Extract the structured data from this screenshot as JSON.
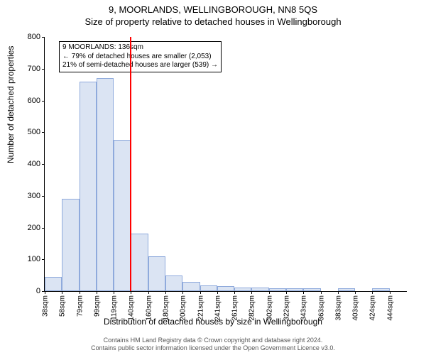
{
  "title_main": "9, MOORLANDS, WELLINGBOROUGH, NN8 5QS",
  "title_sub": "Size of property relative to detached houses in Wellingborough",
  "ylabel": "Number of detached properties",
  "xlabel": "Distribution of detached houses by size in Wellingborough",
  "footer_line1": "Contains HM Land Registry data © Crown copyright and database right 2024.",
  "footer_line2": "Contains public sector information licensed under the Open Government Licence v3.0.",
  "annotation": {
    "line1": "9 MOORLANDS: 136sqm",
    "line2": "← 79% of detached houses are smaller (2,053)",
    "line3": "21% of semi-detached houses are larger (539) →"
  },
  "chart": {
    "type": "histogram",
    "ylim": [
      0,
      800
    ],
    "ytick_step": 100,
    "xticks": [
      "38sqm",
      "58sqm",
      "79sqm",
      "99sqm",
      "119sqm",
      "140sqm",
      "160sqm",
      "180sqm",
      "200sqm",
      "221sqm",
      "241sqm",
      "261sqm",
      "282sqm",
      "302sqm",
      "322sqm",
      "343sqm",
      "363sqm",
      "383sqm",
      "403sqm",
      "424sqm",
      "444sqm"
    ],
    "values": [
      45,
      290,
      660,
      670,
      475,
      180,
      110,
      50,
      30,
      18,
      15,
      12,
      12,
      10,
      10,
      10,
      0,
      10,
      0,
      10,
      0
    ],
    "bar_fill": "#dbe4f3",
    "bar_stroke": "#8faadc",
    "background_color": "#ffffff",
    "refline_x_index": 5,
    "refline_color": "#ff0000",
    "title_fontsize": 13,
    "label_fontsize": 12,
    "tick_fontsize": 10
  }
}
